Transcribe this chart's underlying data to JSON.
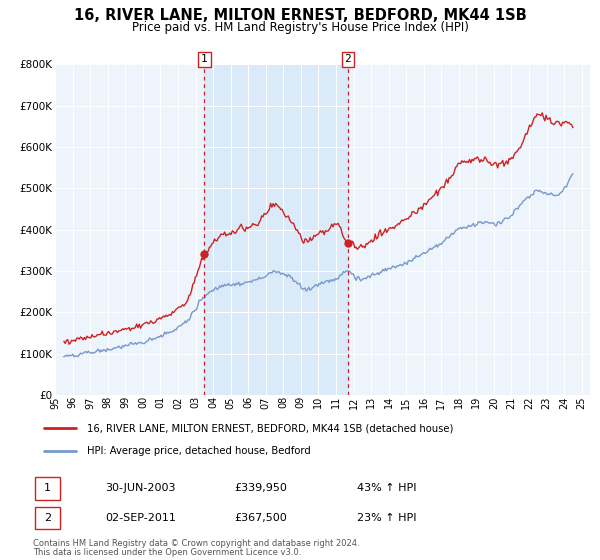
{
  "title": "16, RIVER LANE, MILTON ERNEST, BEDFORD, MK44 1SB",
  "subtitle": "Price paid vs. HM Land Registry's House Price Index (HPI)",
  "xmin": 1995.0,
  "xmax": 2025.5,
  "ymin": 0,
  "ymax": 800000,
  "yticks": [
    0,
    100000,
    200000,
    300000,
    400000,
    500000,
    600000,
    700000,
    800000
  ],
  "ytick_labels": [
    "£0",
    "£100K",
    "£200K",
    "£300K",
    "£400K",
    "£500K",
    "£600K",
    "£700K",
    "£800K"
  ],
  "xticks": [
    1995,
    1996,
    1997,
    1998,
    1999,
    2000,
    2001,
    2002,
    2003,
    2004,
    2005,
    2006,
    2007,
    2008,
    2009,
    2010,
    2011,
    2012,
    2013,
    2014,
    2015,
    2016,
    2017,
    2018,
    2019,
    2020,
    2021,
    2022,
    2023,
    2024,
    2025
  ],
  "xtick_labels": [
    "95",
    "96",
    "97",
    "98",
    "99",
    "00",
    "01",
    "02",
    "03",
    "04",
    "05",
    "06",
    "07",
    "08",
    "09",
    "10",
    "11",
    "12",
    "13",
    "14",
    "15",
    "16",
    "17",
    "18",
    "19",
    "20",
    "21",
    "22",
    "23",
    "24",
    "25"
  ],
  "red_line_color": "#cc2222",
  "blue_line_color": "#7799cc",
  "shaded_color": "#daeaf8",
  "marker1_x": 2003.5,
  "marker1_y": 339950,
  "marker2_x": 2011.67,
  "marker2_y": 367500,
  "vline1_x": 2003.5,
  "vline2_x": 2011.67,
  "legend_label_red": "16, RIVER LANE, MILTON ERNEST, BEDFORD, MK44 1SB (detached house)",
  "legend_label_blue": "HPI: Average price, detached house, Bedford",
  "table_row1": [
    "1",
    "30-JUN-2003",
    "£339,950",
    "43% ↑ HPI"
  ],
  "table_row2": [
    "2",
    "02-SEP-2011",
    "£367,500",
    "23% ↑ HPI"
  ],
  "footer1": "Contains HM Land Registry data © Crown copyright and database right 2024.",
  "footer2": "This data is licensed under the Open Government Licence v3.0."
}
